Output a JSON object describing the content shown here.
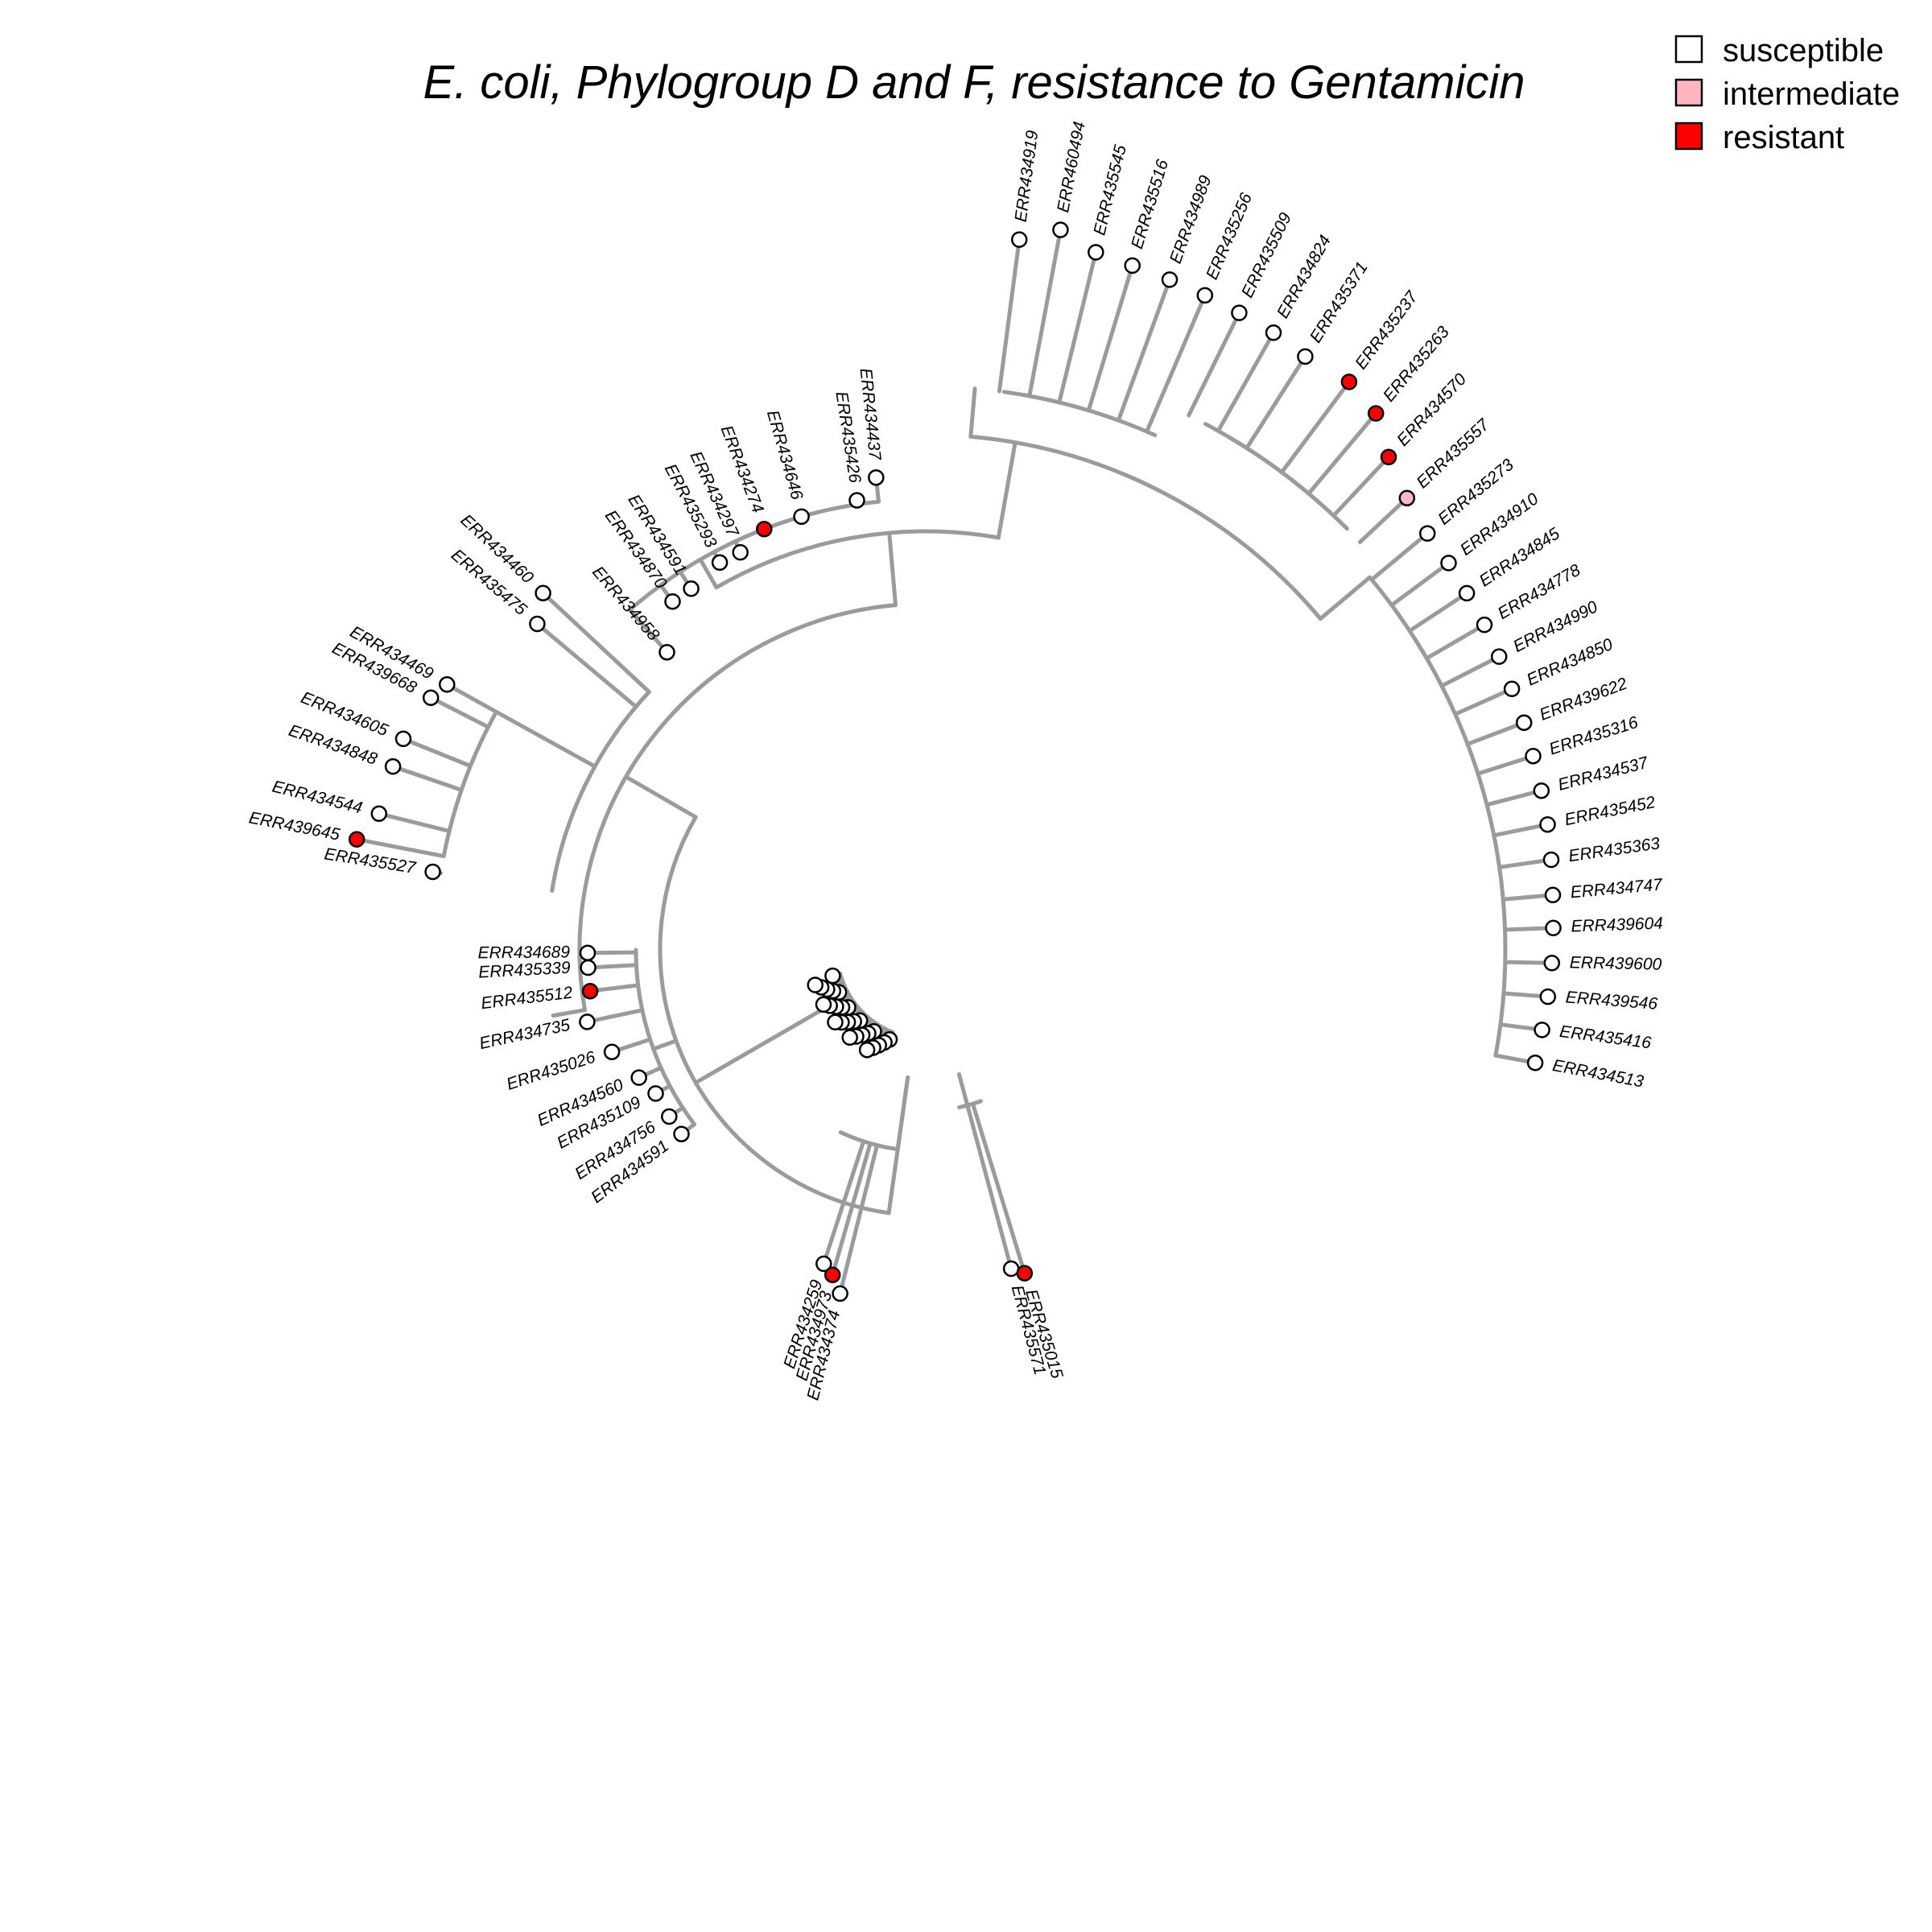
{
  "title": "E. coli, Phylogroup D and F, resistance to Gentamicin",
  "legend": [
    {
      "label": "susceptible",
      "color": "#ffffff"
    },
    {
      "label": "intermediate",
      "color": "#ffb6c1"
    },
    {
      "label": "resistant",
      "color": "#ff0000"
    }
  ],
  "status_colors": {
    "susceptible": "#ffffff",
    "intermediate": "#ffb6c1",
    "resistant": "#ff0000"
  },
  "branch_color": "#9b9b9b",
  "tips": [
    {
      "label": "ERR434513",
      "status": "susceptible"
    },
    {
      "label": "ERR435416",
      "status": "susceptible"
    },
    {
      "label": "ERR439546",
      "status": "susceptible"
    },
    {
      "label": "ERR439600",
      "status": "susceptible"
    },
    {
      "label": "ERR439604",
      "status": "susceptible"
    },
    {
      "label": "ERR434747",
      "status": "susceptible"
    },
    {
      "label": "ERR435363",
      "status": "susceptible"
    },
    {
      "label": "ERR435452",
      "status": "susceptible"
    },
    {
      "label": "ERR434537",
      "status": "susceptible"
    },
    {
      "label": "ERR435316",
      "status": "susceptible"
    },
    {
      "label": "ERR439622",
      "status": "susceptible"
    },
    {
      "label": "ERR434850",
      "status": "susceptible"
    },
    {
      "label": "ERR434990",
      "status": "susceptible"
    },
    {
      "label": "ERR434778",
      "status": "susceptible"
    },
    {
      "label": "ERR434845",
      "status": "susceptible"
    },
    {
      "label": "ERR434910",
      "status": "susceptible"
    },
    {
      "label": "ERR435273",
      "status": "susceptible"
    },
    {
      "label": "ERR435557",
      "status": "intermediate"
    },
    {
      "label": "ERR434570",
      "status": "resistant"
    },
    {
      "label": "ERR435263",
      "status": "resistant"
    },
    {
      "label": "ERR435237",
      "status": "resistant"
    },
    {
      "label": "ERR435371",
      "status": "susceptible"
    },
    {
      "label": "ERR434824",
      "status": "susceptible"
    },
    {
      "label": "ERR435509",
      "status": "susceptible"
    },
    {
      "label": "ERR435256",
      "status": "susceptible"
    },
    {
      "label": "ERR434989",
      "status": "susceptible"
    },
    {
      "label": "ERR435516",
      "status": "susceptible"
    },
    {
      "label": "ERR435545",
      "status": "susceptible"
    },
    {
      "label": "ERR460494",
      "status": "susceptible"
    },
    {
      "label": "ERR434919",
      "status": "susceptible"
    },
    {
      "label": "ERR434437",
      "status": "susceptible"
    },
    {
      "label": "ERR435426",
      "status": "susceptible"
    },
    {
      "label": "ERR434646",
      "status": "susceptible"
    },
    {
      "label": "ERR434274",
      "status": "resistant"
    },
    {
      "label": "ERR434297",
      "status": "susceptible"
    },
    {
      "label": "ERR435293",
      "status": "susceptible"
    },
    {
      "label": "ERR434591",
      "status": "susceptible"
    },
    {
      "label": "ERR434870",
      "status": "susceptible"
    },
    {
      "label": "ERR434958",
      "status": "susceptible"
    },
    {
      "label": "ERR434460",
      "status": "susceptible"
    },
    {
      "label": "ERR435475",
      "status": "susceptible"
    },
    {
      "label": "ERR434469",
      "status": "susceptible"
    },
    {
      "label": "ERR439668",
      "status": "susceptible"
    },
    {
      "label": "ERR434605",
      "status": "susceptible"
    },
    {
      "label": "ERR434848",
      "status": "susceptible"
    },
    {
      "label": "ERR434544",
      "status": "susceptible"
    },
    {
      "label": "ERR439645",
      "status": "resistant"
    },
    {
      "label": "ERR435527",
      "status": "susceptible"
    },
    {
      "label": "ERR434689",
      "status": "susceptible"
    },
    {
      "label": "ERR435339",
      "status": "susceptible"
    },
    {
      "label": "ERR435512",
      "status": "resistant"
    },
    {
      "label": "ERR434735",
      "status": "susceptible"
    },
    {
      "label": "ERR435026",
      "status": "susceptible"
    },
    {
      "label": "ERR434560",
      "status": "susceptible"
    },
    {
      "label": "ERR435109",
      "status": "susceptible"
    },
    {
      "label": "ERR434756",
      "status": "susceptible"
    },
    {
      "label": "ERR434591",
      "status": "susceptible"
    },
    {
      "label": "ERR434259",
      "status": "susceptible"
    },
    {
      "label": "ERR434973",
      "status": "resistant"
    },
    {
      "label": "ERR434374",
      "status": "susceptible"
    },
    {
      "label": "ERR435571",
      "status": "susceptible"
    },
    {
      "label": "ERR435015",
      "status": "resistant"
    }
  ]
}
